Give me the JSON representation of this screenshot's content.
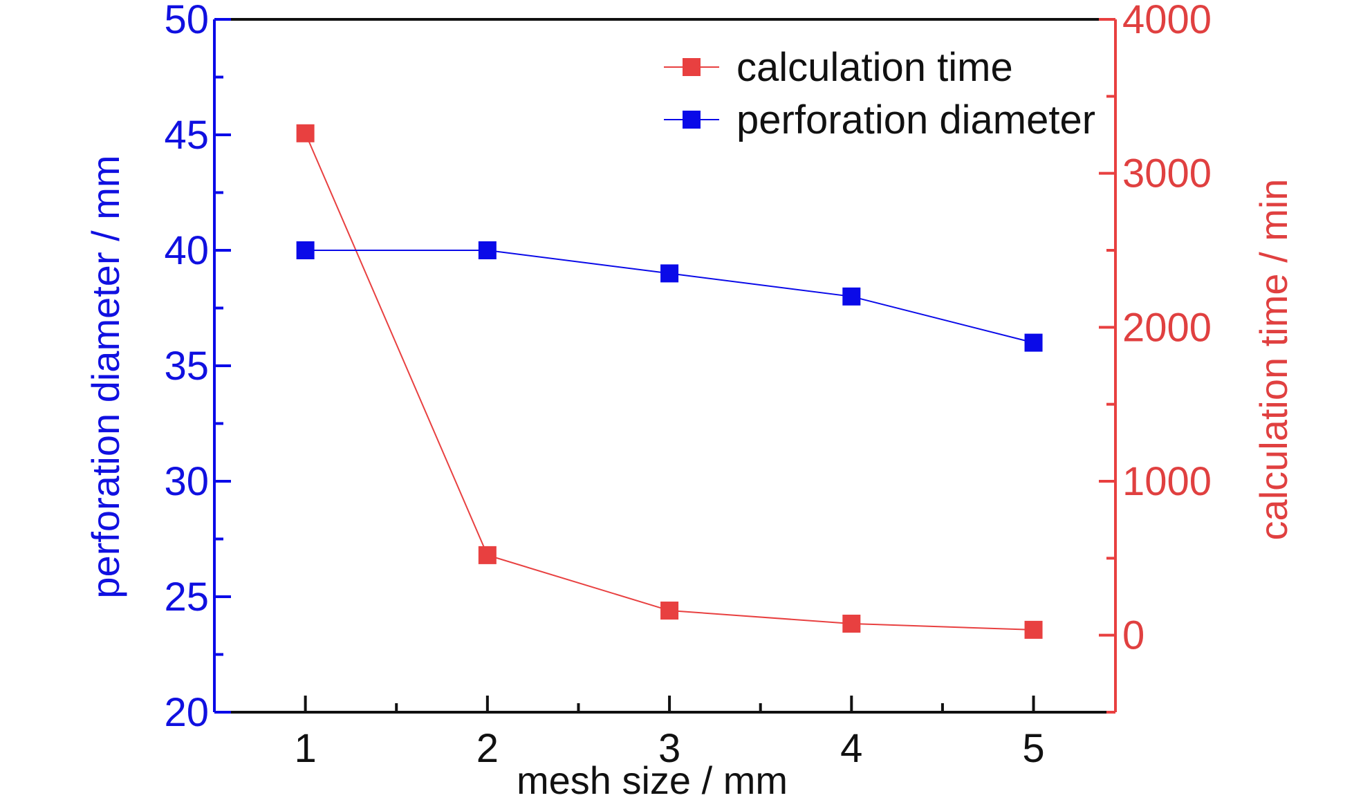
{
  "chart_data": {
    "type": "line",
    "x": [
      1,
      2,
      3,
      4,
      5
    ],
    "xlabel": "mesh size / mm",
    "xlim": [
      0.5,
      5.45
    ],
    "xticks": [
      "1",
      "2",
      "3",
      "4",
      "5"
    ],
    "ylabel_left": "perforation diameter / mm",
    "ylim_left": [
      20,
      50
    ],
    "yticks_left": [
      "20",
      "25",
      "30",
      "35",
      "40",
      "45",
      "50"
    ],
    "ylabel_right": "calculation time / min",
    "ylim_right": [
      -500,
      4000
    ],
    "yticks_right": [
      "0",
      "1000",
      "2000",
      "3000",
      "4000"
    ],
    "series": [
      {
        "name": "calculation time",
        "axis": "right",
        "color": "#e84040",
        "values": [
          3260,
          520,
          160,
          75,
          35
        ]
      },
      {
        "name": "perforation diameter",
        "axis": "left",
        "color": "#0a0ae8",
        "values": [
          40,
          40,
          39,
          38,
          36
        ]
      }
    ],
    "legend": "top-right",
    "grid": false
  }
}
